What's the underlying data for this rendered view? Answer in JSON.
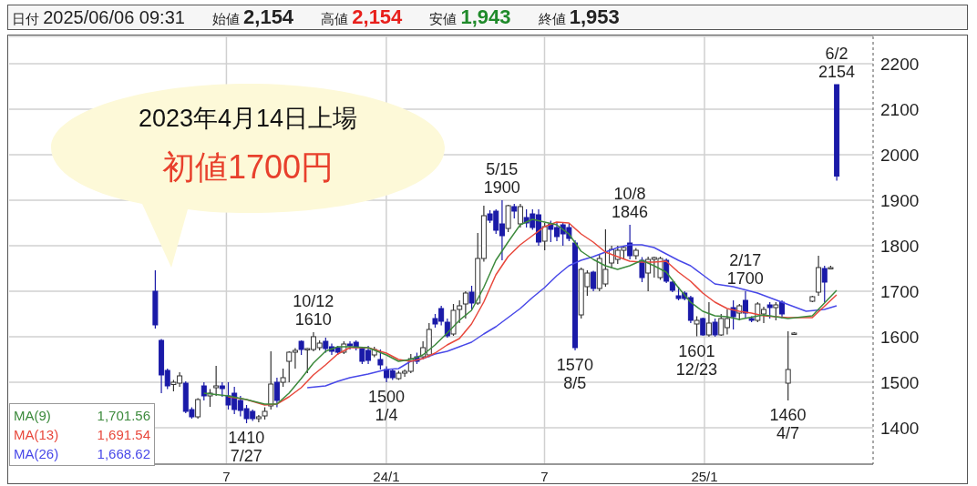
{
  "chart_data": {
    "type": "candlestick",
    "x": [
      "2023-04-10",
      "2023-04-17",
      "2023-04-24",
      "2023-05-01",
      "2023-05-08",
      "2023-05-15",
      "2023-05-22",
      "2023-05-29",
      "2023-06-05",
      "2023-06-12",
      "2023-06-19",
      "2023-06-26",
      "2023-07-03",
      "2023-07-10",
      "2023-07-17",
      "2023-07-24",
      "2023-07-31",
      "2023-08-07",
      "2023-08-14",
      "2023-08-21",
      "2023-08-28",
      "2023-09-04",
      "2023-09-11",
      "2023-09-18",
      "2023-09-25",
      "2023-10-02",
      "2023-10-09",
      "2023-10-16",
      "2023-10-23",
      "2023-10-30",
      "2023-11-06",
      "2023-11-13",
      "2023-11-20",
      "2023-11-27",
      "2023-12-04",
      "2023-12-11",
      "2023-12-18",
      "2023-12-25",
      "2024-01-01",
      "2024-01-08",
      "2024-01-15",
      "2024-01-22",
      "2024-01-29",
      "2024-02-05",
      "2024-02-12",
      "2024-02-19",
      "2024-02-26",
      "2024-03-04",
      "2024-03-11",
      "2024-03-18",
      "2024-03-25",
      "2024-04-01",
      "2024-04-08",
      "2024-04-15",
      "2024-04-22",
      "2024-04-29",
      "2024-05-06",
      "2024-05-13",
      "2024-05-20",
      "2024-05-27",
      "2024-06-03",
      "2024-06-10",
      "2024-06-17",
      "2024-06-24",
      "2024-07-01",
      "2024-07-08",
      "2024-07-15",
      "2024-07-22",
      "2024-07-29",
      "2024-08-05",
      "2024-08-12",
      "2024-08-19",
      "2024-08-26",
      "2024-09-02",
      "2024-09-09",
      "2024-09-16",
      "2024-09-23",
      "2024-09-30",
      "2024-10-07",
      "2024-10-14",
      "2024-10-21",
      "2024-10-28",
      "2024-11-04",
      "2024-11-11",
      "2024-11-18",
      "2024-11-25",
      "2024-12-02",
      "2024-12-09",
      "2024-12-16",
      "2024-12-23",
      "2024-12-30",
      "2025-01-06",
      "2025-01-13",
      "2025-01-20",
      "2025-01-27",
      "2025-02-03",
      "2025-02-10",
      "2025-02-17",
      "2025-02-24",
      "2025-03-03",
      "2025-03-10",
      "2025-03-17",
      "2025-03-24",
      "2025-03-31",
      "2025-04-07",
      "2025-04-14",
      "2025-05-05",
      "2025-05-12",
      "2025-05-19",
      "2025-05-26",
      "2025-06-02"
    ],
    "ohlc": [
      [
        1700,
        1746,
        1618,
        1626
      ],
      [
        1592,
        1595,
        1476,
        1516
      ],
      [
        1526,
        1530,
        1485,
        1492
      ],
      [
        1495,
        1505,
        1480,
        1500
      ],
      [
        1498,
        1522,
        1490,
        1514
      ],
      [
        1498,
        1502,
        1432,
        1436
      ],
      [
        1440,
        1445,
        1420,
        1424
      ],
      [
        1424,
        1465,
        1420,
        1462
      ],
      [
        1492,
        1500,
        1460,
        1470
      ],
      [
        1470,
        1485,
        1446,
        1476
      ],
      [
        1488,
        1536,
        1470,
        1492
      ],
      [
        1492,
        1500,
        1468,
        1486
      ],
      [
        1470,
        1500,
        1440,
        1450
      ],
      [
        1476,
        1490,
        1430,
        1440
      ],
      [
        1460,
        1470,
        1425,
        1438
      ],
      [
        1442,
        1450,
        1410,
        1420
      ],
      [
        1436,
        1440,
        1415,
        1420
      ],
      [
        1420,
        1428,
        1412,
        1424
      ],
      [
        1426,
        1445,
        1418,
        1436
      ],
      [
        1448,
        1568,
        1440,
        1496
      ],
      [
        1500,
        1510,
        1445,
        1460
      ],
      [
        1500,
        1530,
        1490,
        1510
      ],
      [
        1546,
        1568,
        1500,
        1566
      ],
      [
        1566,
        1575,
        1530,
        1570
      ],
      [
        1590,
        1592,
        1560,
        1572
      ],
      [
        1572,
        1575,
        1520,
        1574
      ],
      [
        1572,
        1610,
        1568,
        1600
      ],
      [
        1576,
        1592,
        1570,
        1586
      ],
      [
        1590,
        1598,
        1565,
        1574
      ],
      [
        1578,
        1585,
        1560,
        1568
      ],
      [
        1576,
        1580,
        1560,
        1566
      ],
      [
        1566,
        1590,
        1562,
        1584
      ],
      [
        1584,
        1590,
        1572,
        1580
      ],
      [
        1588,
        1592,
        1570,
        1576
      ],
      [
        1574,
        1578,
        1540,
        1546
      ],
      [
        1570,
        1580,
        1540,
        1548
      ],
      [
        1560,
        1578,
        1555,
        1572
      ],
      [
        1550,
        1572,
        1528,
        1538
      ],
      [
        1528,
        1535,
        1500,
        1510
      ],
      [
        1525,
        1530,
        1505,
        1510
      ],
      [
        1508,
        1525,
        1505,
        1520
      ],
      [
        1520,
        1528,
        1512,
        1524
      ],
      [
        1524,
        1562,
        1520,
        1552
      ],
      [
        1556,
        1565,
        1540,
        1546
      ],
      [
        1556,
        1590,
        1550,
        1576
      ],
      [
        1560,
        1630,
        1555,
        1616
      ],
      [
        1640,
        1650,
        1620,
        1628
      ],
      [
        1662,
        1668,
        1625,
        1634
      ],
      [
        1632,
        1640,
        1598,
        1602
      ],
      [
        1606,
        1672,
        1602,
        1658
      ],
      [
        1660,
        1680,
        1630,
        1668
      ],
      [
        1672,
        1700,
        1640,
        1696
      ],
      [
        1698,
        1712,
        1660,
        1674
      ],
      [
        1674,
        1828,
        1670,
        1772
      ],
      [
        1772,
        1888,
        1765,
        1866
      ],
      [
        1870,
        1878,
        1850,
        1856
      ],
      [
        1876,
        1880,
        1826,
        1834
      ],
      [
        1848,
        1900,
        1768,
        1822
      ],
      [
        1838,
        1890,
        1830,
        1888
      ],
      [
        1886,
        1892,
        1860,
        1876
      ],
      [
        1848,
        1892,
        1840,
        1886
      ],
      [
        1862,
        1880,
        1840,
        1850
      ],
      [
        1870,
        1880,
        1835,
        1840
      ],
      [
        1868,
        1880,
        1800,
        1808
      ],
      [
        1810,
        1850,
        1790,
        1842
      ],
      [
        1848,
        1855,
        1808,
        1836
      ],
      [
        1840,
        1850,
        1810,
        1820
      ],
      [
        1846,
        1850,
        1800,
        1826
      ],
      [
        1840,
        1848,
        1810,
        1816
      ],
      [
        1806,
        1812,
        1570,
        1576
      ],
      [
        1648,
        1752,
        1640,
        1748
      ],
      [
        1710,
        1746,
        1690,
        1740
      ],
      [
        1742,
        1745,
        1700,
        1706
      ],
      [
        1706,
        1780,
        1700,
        1772
      ],
      [
        1716,
        1836,
        1710,
        1748
      ],
      [
        1762,
        1800,
        1750,
        1792
      ],
      [
        1770,
        1800,
        1760,
        1790
      ],
      [
        1790,
        1800,
        1770,
        1796
      ],
      [
        1806,
        1846,
        1770,
        1778
      ],
      [
        1778,
        1795,
        1770,
        1790
      ],
      [
        1768,
        1775,
        1720,
        1730
      ],
      [
        1740,
        1776,
        1700,
        1770
      ],
      [
        1770,
        1776,
        1730,
        1774
      ],
      [
        1730,
        1776,
        1725,
        1772
      ],
      [
        1768,
        1772,
        1718,
        1722
      ],
      [
        1720,
        1722,
        1698,
        1702
      ],
      [
        1690,
        1710,
        1680,
        1684
      ],
      [
        1696,
        1700,
        1680,
        1684
      ],
      [
        1686,
        1690,
        1630,
        1636
      ],
      [
        1628,
        1645,
        1601,
        1636
      ],
      [
        1640,
        1642,
        1602,
        1604
      ],
      [
        1604,
        1676,
        1600,
        1630
      ],
      [
        1632,
        1640,
        1600,
        1604
      ],
      [
        1604,
        1650,
        1602,
        1640
      ],
      [
        1620,
        1660,
        1605,
        1640
      ],
      [
        1664,
        1680,
        1616,
        1644
      ],
      [
        1652,
        1672,
        1636,
        1668
      ],
      [
        1680,
        1700,
        1640,
        1652
      ],
      [
        1640,
        1645,
        1632,
        1636
      ],
      [
        1636,
        1676,
        1632,
        1672
      ],
      [
        1650,
        1666,
        1630,
        1660
      ],
      [
        1670,
        1676,
        1640,
        1664
      ],
      [
        1664,
        1676,
        1636,
        1670
      ],
      [
        1676,
        1680,
        1640,
        1650
      ],
      [
        1498,
        1612,
        1460,
        1528
      ],
      [
        1608,
        1610,
        1606,
        1608
      ],
      [
        1678,
        1690,
        1676,
        1688
      ],
      [
        1698,
        1778,
        1690,
        1752
      ],
      [
        1750,
        1756,
        1676,
        1720
      ],
      [
        1752,
        1756,
        1750,
        1752
      ],
      [
        2154,
        2154,
        1943,
        1953
      ]
    ],
    "series": [
      {
        "type": "line",
        "name": "MA(9)",
        "color": "#3c8a3c",
        "x": [
          "2023-06-05",
          "2023-07-03",
          "2023-07-24",
          "2023-08-14",
          "2023-08-28",
          "2023-09-11",
          "2023-09-25",
          "2023-10-09",
          "2023-10-23",
          "2023-11-06",
          "2023-11-20",
          "2023-12-11",
          "2024-01-01",
          "2024-01-15",
          "2024-01-29",
          "2024-02-12",
          "2024-02-26",
          "2024-03-11",
          "2024-03-25",
          "2024-04-08",
          "2024-04-22",
          "2024-05-06",
          "2024-05-20",
          "2024-06-03",
          "2024-06-17",
          "2024-07-01",
          "2024-07-15",
          "2024-07-29",
          "2024-08-12",
          "2024-08-26",
          "2024-09-09",
          "2024-09-23",
          "2024-10-07",
          "2024-10-21",
          "2024-11-04",
          "2024-11-18",
          "2024-12-02",
          "2024-12-16",
          "2024-12-30",
          "2025-01-13",
          "2025-01-27",
          "2025-02-10",
          "2025-03-10",
          "2025-04-07",
          "2025-05-05",
          "2025-06-02"
        ],
        "values": [
          1476,
          1470,
          1462,
          1452,
          1452,
          1476,
          1508,
          1542,
          1568,
          1578,
          1578,
          1576,
          1560,
          1546,
          1550,
          1560,
          1582,
          1608,
          1636,
          1658,
          1708,
          1768,
          1808,
          1846,
          1858,
          1852,
          1846,
          1826,
          1788,
          1770,
          1756,
          1748,
          1756,
          1768,
          1756,
          1742,
          1708,
          1676,
          1656,
          1646,
          1644,
          1638,
          1648,
          1640,
          1646,
          1702
        ]
      },
      {
        "type": "line",
        "name": "MA(13)",
        "color": "#e8483c",
        "x": [
          "2023-07-03",
          "2023-07-24",
          "2023-08-14",
          "2023-08-28",
          "2023-09-11",
          "2023-09-25",
          "2023-10-09",
          "2023-10-23",
          "2023-11-06",
          "2023-11-20",
          "2023-12-11",
          "2024-01-01",
          "2024-01-15",
          "2024-01-29",
          "2024-02-12",
          "2024-02-26",
          "2024-03-11",
          "2024-03-25",
          "2024-04-08",
          "2024-04-22",
          "2024-05-06",
          "2024-05-20",
          "2024-06-03",
          "2024-06-17",
          "2024-07-01",
          "2024-07-15",
          "2024-07-29",
          "2024-08-12",
          "2024-08-26",
          "2024-09-09",
          "2024-09-23",
          "2024-10-07",
          "2024-10-21",
          "2024-11-04",
          "2024-11-18",
          "2024-12-02",
          "2024-12-16",
          "2024-12-30",
          "2025-01-13",
          "2025-01-27",
          "2025-02-10",
          "2025-02-24",
          "2025-03-10",
          "2025-04-07",
          "2025-05-05",
          "2025-06-02"
        ],
        "values": [
          1468,
          1462,
          1450,
          1452,
          1468,
          1488,
          1516,
          1538,
          1562,
          1576,
          1576,
          1564,
          1550,
          1546,
          1552,
          1564,
          1582,
          1596,
          1628,
          1676,
          1736,
          1776,
          1802,
          1822,
          1842,
          1852,
          1850,
          1826,
          1808,
          1786,
          1776,
          1766,
          1764,
          1764,
          1766,
          1742,
          1722,
          1696,
          1676,
          1662,
          1656,
          1652,
          1646,
          1642,
          1642,
          1692
        ]
      },
      {
        "type": "line",
        "name": "MA(26)",
        "color": "#4848e8",
        "x": [
          "2023-10-02",
          "2023-10-23",
          "2023-11-06",
          "2023-11-20",
          "2023-12-11",
          "2024-01-01",
          "2024-01-15",
          "2024-01-29",
          "2024-02-12",
          "2024-02-26",
          "2024-03-11",
          "2024-03-25",
          "2024-04-08",
          "2024-04-22",
          "2024-05-06",
          "2024-05-20",
          "2024-06-03",
          "2024-06-17",
          "2024-07-01",
          "2024-07-15",
          "2024-07-29",
          "2024-08-12",
          "2024-08-26",
          "2024-09-09",
          "2024-09-23",
          "2024-10-07",
          "2024-10-21",
          "2024-11-04",
          "2024-11-18",
          "2024-12-02",
          "2024-12-16",
          "2024-12-30",
          "2025-01-13",
          "2025-02-03",
          "2025-03-03",
          "2025-03-31",
          "2025-04-28",
          "2025-05-19",
          "2025-06-02"
        ],
        "values": [
          1488,
          1492,
          1502,
          1510,
          1518,
          1528,
          1530,
          1546,
          1552,
          1562,
          1568,
          1578,
          1588,
          1606,
          1622,
          1642,
          1662,
          1686,
          1708,
          1734,
          1756,
          1768,
          1776,
          1786,
          1796,
          1802,
          1802,
          1796,
          1782,
          1768,
          1756,
          1736,
          1716,
          1710,
          1696,
          1676,
          1656,
          1660,
          1668
        ]
      }
    ],
    "xlim": [
      "2022-10-24",
      "2025-07-14"
    ],
    "xticks": [
      {
        "value": "2023-07-01",
        "label": "7"
      },
      {
        "value": "2024-01-01",
        "label": "24/1"
      },
      {
        "value": "2024-07-01",
        "label": "7"
      },
      {
        "value": "2025-01-01",
        "label": "25/1"
      }
    ],
    "ylim": [
      1320,
      2260
    ],
    "yticks": [
      1400,
      1500,
      1600,
      1700,
      1800,
      1900,
      2000,
      2100,
      2200
    ],
    "grid": true,
    "legend": "bottom left",
    "marker": "none",
    "line_style": "solid",
    "annotations": [
      "日付 2025/06/06 09:31",
      "始値 2,154",
      "高値 2,154",
      "安値 1,943",
      "終値 1,953",
      "2023年4月14日上場",
      "初値1700円",
      "1,701.56",
      "1,691.54",
      "1,668.62",
      {
        "text": "1410\n7/27",
        "x": "2023-07-24",
        "y": 1410
      },
      {
        "text": "10/12\n1610",
        "x": "2023-10-09",
        "y": 1610
      },
      {
        "text": "1500\n1/4",
        "x": "2024-01-01",
        "y": 1500
      },
      {
        "text": "5/15\n1900",
        "x": "2024-05-13",
        "y": 1900
      },
      {
        "text": "1570\n8/5",
        "x": "2024-08-05",
        "y": 1570
      },
      {
        "text": "10/8\n1846",
        "x": "2024-10-07",
        "y": 1846
      },
      {
        "text": "1601\n12/23",
        "x": "2024-12-23",
        "y": 1601
      },
      {
        "text": "2/17\n1700",
        "x": "2025-02-17",
        "y": 1700
      },
      {
        "text": "1460\n4/7",
        "x": "2025-04-07",
        "y": 1460
      },
      {
        "text": "6/2\n2154",
        "x": "2025-06-02",
        "y": 2154
      }
    ]
  }
}
